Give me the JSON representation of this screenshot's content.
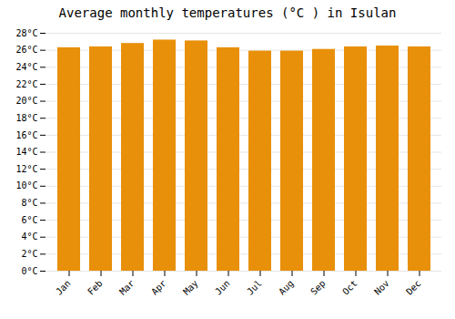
{
  "chart_data": {
    "type": "bar",
    "title": "Average monthly temperatures (°C ) in Isulan",
    "categories": [
      "Jan",
      "Feb",
      "Mar",
      "Apr",
      "May",
      "Jun",
      "Jul",
      "Aug",
      "Sep",
      "Oct",
      "Nov",
      "Dec"
    ],
    "values": [
      26.3,
      26.4,
      26.8,
      27.2,
      27.1,
      26.3,
      25.9,
      25.9,
      26.1,
      26.4,
      26.5,
      26.4
    ],
    "color": "#E8900A",
    "ylim": [
      0,
      28
    ],
    "yticks": [
      {
        "value": 0,
        "label": "0°C"
      },
      {
        "value": 2,
        "label": "2°C"
      },
      {
        "value": 4,
        "label": "4°C"
      },
      {
        "value": 6,
        "label": "6°C"
      },
      {
        "value": 8,
        "label": "8°C"
      },
      {
        "value": 10,
        "label": "10°C"
      },
      {
        "value": 12,
        "label": "12°C"
      },
      {
        "value": 14,
        "label": "14°C"
      },
      {
        "value": 16,
        "label": "16°C"
      },
      {
        "value": 18,
        "label": "18°C"
      },
      {
        "value": 20,
        "label": "20°C"
      },
      {
        "value": 22,
        "label": "22°C"
      },
      {
        "value": 24,
        "label": "24°C"
      },
      {
        "value": 26,
        "label": "26°C"
      },
      {
        "value": 28,
        "label": "28°C"
      }
    ],
    "grid": true
  }
}
